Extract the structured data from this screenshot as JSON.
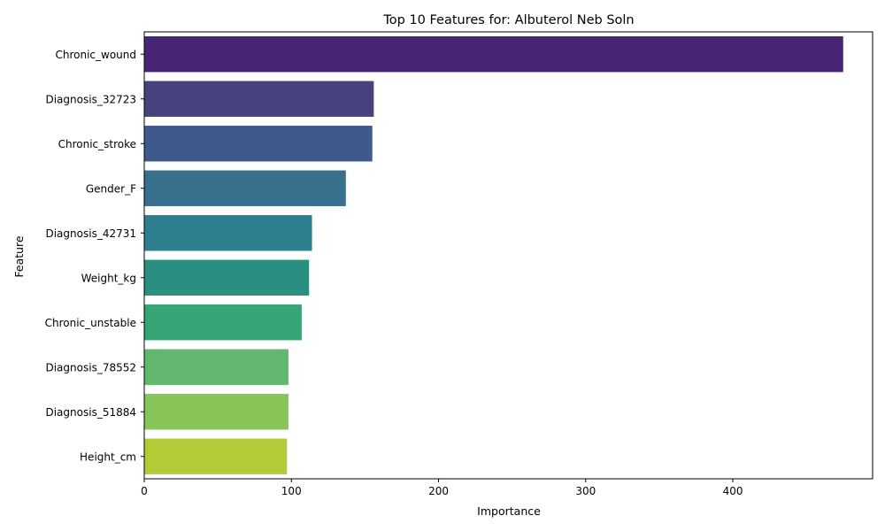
{
  "chart_data": {
    "type": "bar",
    "orientation": "horizontal",
    "title": "Top 10 Features for: Albuterol Neb Soln",
    "xlabel": "Importance",
    "ylabel": "Feature",
    "xlim": [
      0,
      495
    ],
    "xticks": [
      0,
      100,
      200,
      300,
      400
    ],
    "grid": false,
    "categories": [
      "Chronic_wound",
      "Diagnosis_32723",
      "Chronic_stroke",
      "Gender_F",
      "Diagnosis_42731",
      "Weight_kg",
      "Chronic_unstable",
      "Diagnosis_78552",
      "Diagnosis_51884",
      "Height_cm"
    ],
    "values": [
      475,
      156,
      155,
      137,
      114,
      112,
      107,
      98,
      98,
      97
    ],
    "colors": [
      "#482475",
      "#46437f",
      "#3e5a8c",
      "#38708d",
      "#2d7f8e",
      "#2a8e81",
      "#36a475",
      "#62b86e",
      "#88c558",
      "#b4cb38"
    ]
  }
}
